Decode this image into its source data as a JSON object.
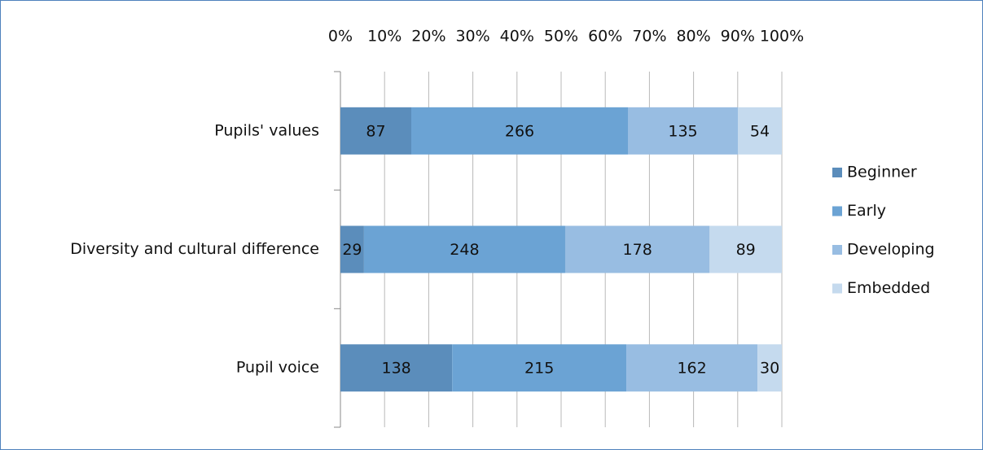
{
  "chart_data": {
    "type": "bar",
    "orientation": "horizontal",
    "stacking": "percent",
    "categories": [
      "Pupils' values",
      "Diversity and cultural difference",
      "Pupil voice"
    ],
    "series": [
      {
        "name": "Beginner",
        "color": "#5b8dbb",
        "values": [
          87,
          29,
          138
        ]
      },
      {
        "name": "Early",
        "color": "#6ba3d4",
        "values": [
          266,
          248,
          215
        ]
      },
      {
        "name": "Developing",
        "color": "#98bde2",
        "values": [
          135,
          178,
          162
        ]
      },
      {
        "name": "Embedded",
        "color": "#c5daee",
        "values": [
          54,
          89,
          30
        ]
      }
    ],
    "xlim": [
      0,
      100
    ],
    "xticks": [
      {
        "value": 0,
        "label": "0%"
      },
      {
        "value": 10,
        "label": "10%"
      },
      {
        "value": 20,
        "label": "20%"
      },
      {
        "value": 30,
        "label": "30%"
      },
      {
        "value": 40,
        "label": "40%"
      },
      {
        "value": 50,
        "label": "50%"
      },
      {
        "value": 60,
        "label": "60%"
      },
      {
        "value": 70,
        "label": "70%"
      },
      {
        "value": 80,
        "label": "80%"
      },
      {
        "value": 90,
        "label": "90%"
      },
      {
        "value": 100,
        "label": "100%"
      }
    ],
    "grid": true,
    "legend": "right"
  }
}
